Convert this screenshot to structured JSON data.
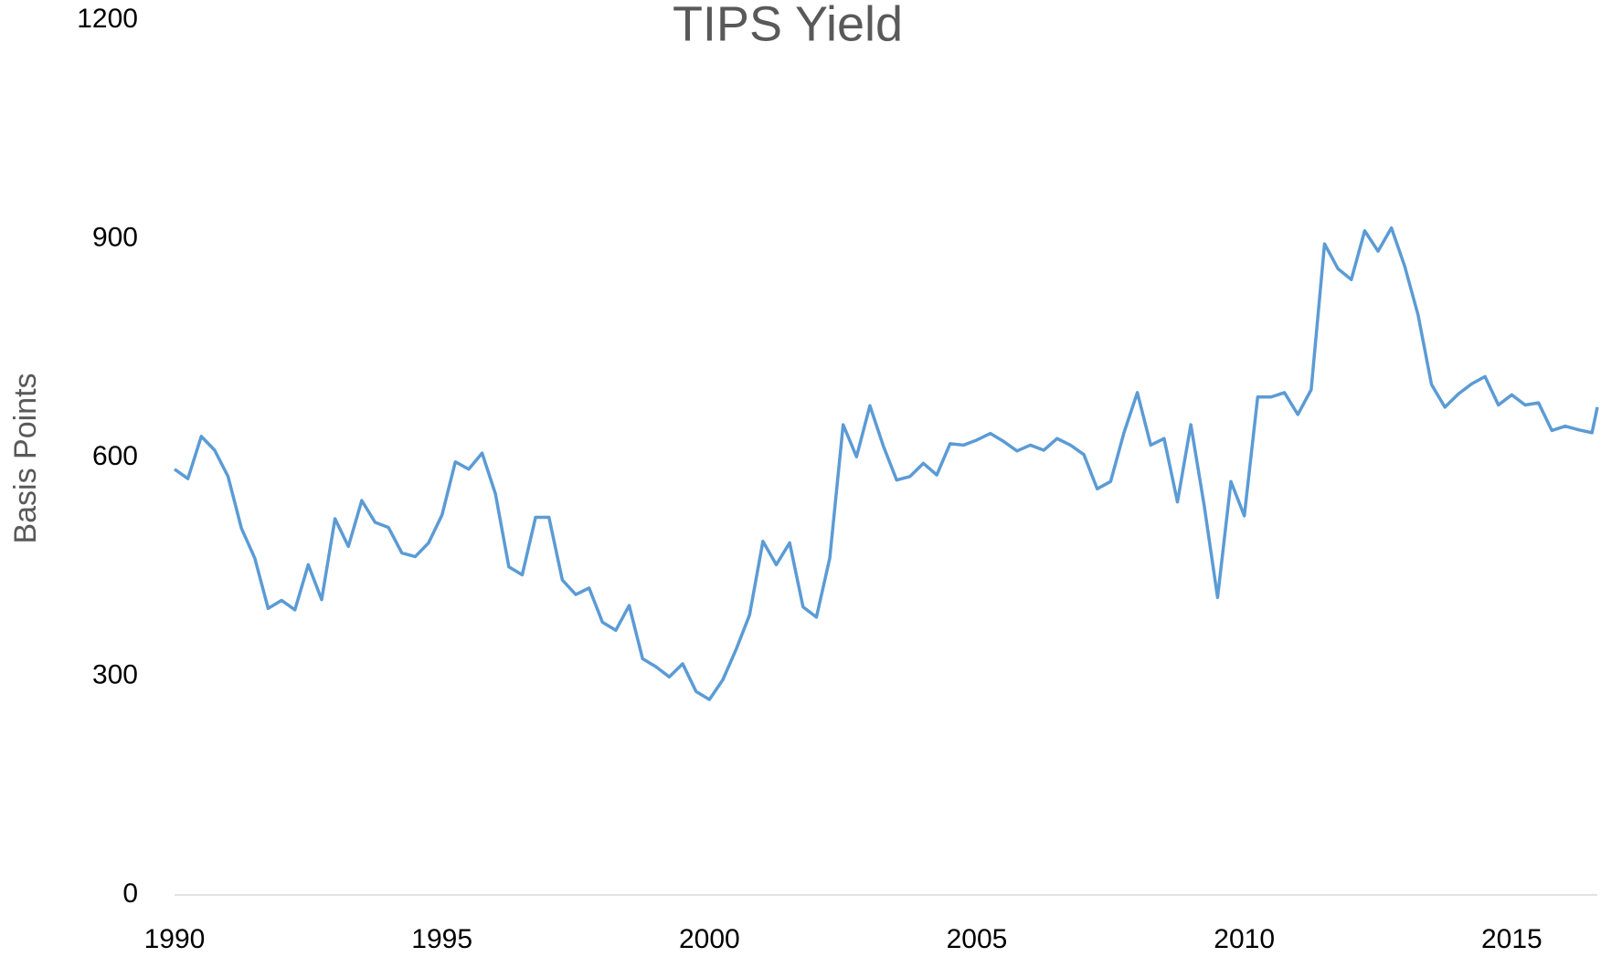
{
  "chart_data": {
    "type": "line",
    "title": "TIPS Yield",
    "ylabel": "Basis Points",
    "x": [
      1990,
      1990.25,
      1990.5,
      1990.75,
      1991,
      1991.25,
      1991.5,
      1991.75,
      1992,
      1992.25,
      1992.5,
      1992.75,
      1993,
      1993.25,
      1993.5,
      1993.75,
      1994,
      1994.25,
      1994.5,
      1994.75,
      1995,
      1995.25,
      1995.5,
      1995.75,
      1996,
      1996.25,
      1996.5,
      1996.75,
      1997,
      1997.25,
      1997.5,
      1997.75,
      1998,
      1998.25,
      1998.5,
      1998.75,
      1999,
      1999.25,
      1999.5,
      1999.75,
      2000,
      2000.25,
      2000.5,
      2000.75,
      2001,
      2001.25,
      2001.5,
      2001.75,
      2002,
      2002.25,
      2002.5,
      2002.75,
      2003,
      2003.25,
      2003.5,
      2003.75,
      2004,
      2004.25,
      2004.5,
      2004.75,
      2005,
      2005.25,
      2005.5,
      2005.75,
      2006,
      2006.25,
      2006.5,
      2006.75,
      2007,
      2007.25,
      2007.5,
      2007.75,
      2008,
      2008.25,
      2008.5,
      2008.75,
      2009,
      2009.25,
      2009.5,
      2009.75,
      2010,
      2010.25,
      2010.5,
      2010.75,
      2011,
      2011.25,
      2011.5,
      2011.75,
      2012,
      2012.25,
      2012.5,
      2012.75,
      2013,
      2013.25,
      2013.5,
      2013.75,
      2014,
      2014.25,
      2014.5,
      2014.75,
      2015,
      2015.25,
      2015.5,
      2015.75,
      2016,
      2016.25,
      2016.5,
      2016.6
    ],
    "series": [
      {
        "name": "TIPS Yield",
        "color": "#5b9bd5",
        "values": [
          584,
          571,
          629,
          610,
          574,
          503,
          462,
          393,
          404,
          391,
          453,
          405,
          516,
          478,
          541,
          511,
          504,
          469,
          464,
          483,
          521,
          594,
          584,
          606,
          550,
          450,
          439,
          518,
          518,
          432,
          412,
          421,
          374,
          363,
          397,
          324,
          313,
          299,
          317,
          279,
          268,
          295,
          337,
          384,
          485,
          453,
          483,
          395,
          381,
          462,
          645,
          601,
          671,
          616,
          569,
          574,
          592,
          576,
          619,
          617,
          624,
          633,
          622,
          609,
          617,
          610,
          626,
          617,
          604,
          557,
          567,
          634,
          689,
          617,
          626,
          539,
          645,
          534,
          408,
          567,
          520,
          683,
          683,
          689,
          659,
          693,
          893,
          859,
          844,
          911,
          883,
          915,
          862,
          795,
          700,
          669,
          687,
          701,
          711,
          672,
          686,
          672,
          675,
          637,
          643,
          638,
          634,
          669
        ]
      }
    ],
    "xlim": [
      1990,
      2016.6
    ],
    "xticks": [
      1990,
      1995,
      2000,
      2005,
      2010,
      2015
    ],
    "ylim": [
      0,
      1200
    ],
    "yticks": [
      0,
      300,
      600,
      900,
      1200
    ],
    "grid": false
  }
}
